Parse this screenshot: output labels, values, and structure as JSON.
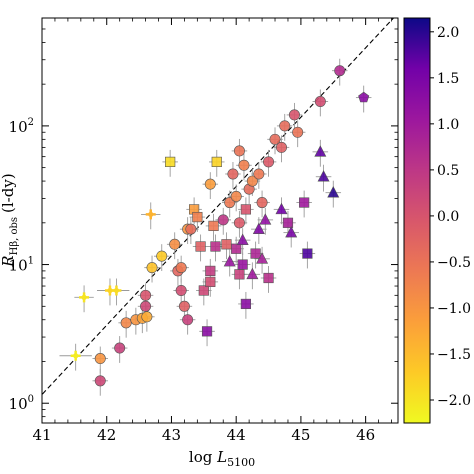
{
  "chart_data": {
    "type": "scatter",
    "title": "",
    "xlabel_prefix": "log ",
    "xlabel_var": "L",
    "xlabel_sub": "5100",
    "ylabel_main": "R",
    "ylabel_sub": "Hβ, obs",
    "ylabel_unit": "(l-dy)",
    "xlim": [
      41.0,
      46.5
    ],
    "ylim": [
      0.72,
      600
    ],
    "yscale": "log",
    "xticks": [
      41,
      42,
      43,
      44,
      45,
      46
    ],
    "yticks": [
      {
        "value": 1,
        "base": "10",
        "exp": "0"
      },
      {
        "value": 10,
        "base": "10",
        "exp": "1"
      },
      {
        "value": 100,
        "base": "10",
        "exp": "2"
      }
    ],
    "reference_line": {
      "style": "dashed",
      "color": "#000000",
      "x": [
        40.5,
        46.5
      ],
      "y": [
        0.65,
        650
      ]
    },
    "colorbar": {
      "range": [
        -2.25,
        2.15
      ],
      "ticks": [
        "2.0",
        "1.5",
        "1.0",
        "0.5",
        "0.0",
        "−0.5",
        "−1.0",
        "−1.5",
        "−2.0"
      ],
      "tick_values": [
        2.0,
        1.5,
        1.0,
        0.5,
        0.0,
        -0.5,
        -1.0,
        -1.5,
        -2.0
      ],
      "colormap": "plasma"
    },
    "points": [
      {
        "x": 41.52,
        "y": 2.2,
        "m": "plus",
        "c": -2.1,
        "xe": 0.25
      },
      {
        "x": 41.65,
        "y": 5.8,
        "m": "plus",
        "c": -2.0,
        "xe": 0.15
      },
      {
        "x": 41.9,
        "y": 1.45,
        "m": "circle",
        "c": 0.2
      },
      {
        "x": 41.9,
        "y": 2.1,
        "m": "circle",
        "c": -1.0
      },
      {
        "x": 42.05,
        "y": 6.5,
        "m": "plus",
        "c": -1.8,
        "xe": 0.2
      },
      {
        "x": 42.15,
        "y": 6.5,
        "m": "plus",
        "c": -1.9,
        "xe": 0.2
      },
      {
        "x": 42.2,
        "y": 2.5,
        "m": "circle",
        "c": 0.3
      },
      {
        "x": 42.3,
        "y": 3.8,
        "m": "circle",
        "c": -0.8
      },
      {
        "x": 42.45,
        "y": 4.0,
        "m": "circle",
        "c": -1.0
      },
      {
        "x": 42.55,
        "y": 4.1,
        "m": "circle",
        "c": -1.2
      },
      {
        "x": 42.6,
        "y": 6.0,
        "m": "circle",
        "c": 0.0
      },
      {
        "x": 42.6,
        "y": 5.0,
        "m": "circle",
        "c": 0.2
      },
      {
        "x": 42.62,
        "y": 4.2,
        "m": "circle",
        "c": -1.3
      },
      {
        "x": 42.68,
        "y": 23.0,
        "m": "plus",
        "c": -1.4,
        "xe": 0.15
      },
      {
        "x": 42.7,
        "y": 9.5,
        "m": "circle",
        "c": -1.6
      },
      {
        "x": 42.85,
        "y": 11.5,
        "m": "circle",
        "c": -1.7
      },
      {
        "x": 43.05,
        "y": 14.0,
        "m": "circle",
        "c": -0.9
      },
      {
        "x": 43.1,
        "y": 9.0,
        "m": "circle",
        "c": -0.3
      },
      {
        "x": 43.15,
        "y": 9.5,
        "m": "circle",
        "c": -0.6
      },
      {
        "x": 43.15,
        "y": 6.5,
        "m": "circle",
        "c": 0.1
      },
      {
        "x": 43.2,
        "y": 5.0,
        "m": "circle",
        "c": -0.2
      },
      {
        "x": 43.25,
        "y": 4.0,
        "m": "circle",
        "c": 0.3
      },
      {
        "x": 43.25,
        "y": 18.0,
        "m": "circle",
        "c": -1.0
      },
      {
        "x": 43.3,
        "y": 18.0,
        "m": "circle",
        "c": -0.4
      },
      {
        "x": 43.35,
        "y": 25.0,
        "m": "square",
        "c": -1.1
      },
      {
        "x": 43.4,
        "y": 22.0,
        "m": "square",
        "c": -0.7
      },
      {
        "x": 43.45,
        "y": 13.5,
        "m": "square",
        "c": -0.2
      },
      {
        "x": 43.5,
        "y": 6.5,
        "m": "square",
        "c": 0.2
      },
      {
        "x": 43.55,
        "y": 3.3,
        "m": "square",
        "c": 1.3
      },
      {
        "x": 43.6,
        "y": 7.5,
        "m": "square",
        "c": 0.1
      },
      {
        "x": 43.6,
        "y": 9.0,
        "m": "square",
        "c": 0.4
      },
      {
        "x": 43.6,
        "y": 38.0,
        "m": "circle",
        "c": -1.1
      },
      {
        "x": 43.65,
        "y": 19.0,
        "m": "square",
        "c": -0.6
      },
      {
        "x": 43.68,
        "y": 13.5,
        "m": "square",
        "c": 0.6
      },
      {
        "x": 43.7,
        "y": 55.0,
        "m": "square",
        "c": -1.8
      },
      {
        "x": 43.8,
        "y": 21.0,
        "m": "circle",
        "c": 0.5
      },
      {
        "x": 43.85,
        "y": 14.0,
        "m": "square",
        "c": -0.2
      },
      {
        "x": 43.9,
        "y": 28.0,
        "m": "circle",
        "c": -0.6
      },
      {
        "x": 43.9,
        "y": 10.5,
        "m": "triangle",
        "c": 1.1
      },
      {
        "x": 43.95,
        "y": 45.0,
        "m": "circle",
        "c": -0.3
      },
      {
        "x": 44.0,
        "y": 13.0,
        "m": "square",
        "c": 0.7
      },
      {
        "x": 44.0,
        "y": 31.0,
        "m": "circle",
        "c": -0.8
      },
      {
        "x": 44.05,
        "y": 8.5,
        "m": "square",
        "c": 0.3
      },
      {
        "x": 44.05,
        "y": 20.0,
        "m": "circle",
        "c": -0.1
      },
      {
        "x": 44.05,
        "y": 66.0,
        "m": "circle",
        "c": -0.5
      },
      {
        "x": 44.1,
        "y": 10.0,
        "m": "square",
        "c": 1.1
      },
      {
        "x": 44.1,
        "y": 15.0,
        "m": "triangle",
        "c": 1.3
      },
      {
        "x": 44.12,
        "y": 52.0,
        "m": "circle",
        "c": -0.7
      },
      {
        "x": 44.15,
        "y": 5.2,
        "m": "square",
        "c": 1.3
      },
      {
        "x": 44.15,
        "y": 25.0,
        "m": "square",
        "c": 0.0
      },
      {
        "x": 44.2,
        "y": 35.0,
        "m": "circle",
        "c": -0.4
      },
      {
        "x": 44.25,
        "y": 40.0,
        "m": "circle",
        "c": -0.8
      },
      {
        "x": 44.25,
        "y": 8.5,
        "m": "triangle",
        "c": 1.0
      },
      {
        "x": 44.3,
        "y": 12.0,
        "m": "square",
        "c": 0.8
      },
      {
        "x": 44.35,
        "y": 18.0,
        "m": "triangle",
        "c": 1.4
      },
      {
        "x": 44.35,
        "y": 45.0,
        "m": "circle",
        "c": -0.6
      },
      {
        "x": 44.4,
        "y": 11.0,
        "m": "triangle",
        "c": 0.9
      },
      {
        "x": 44.4,
        "y": 28.0,
        "m": "circle",
        "c": -0.3
      },
      {
        "x": 44.45,
        "y": 21.0,
        "m": "triangle",
        "c": 1.2
      },
      {
        "x": 44.5,
        "y": 8.0,
        "m": "square",
        "c": 0.6
      },
      {
        "x": 44.5,
        "y": 55.0,
        "m": "circle",
        "c": -0.1
      },
      {
        "x": 44.6,
        "y": 80.0,
        "m": "circle",
        "c": -0.4
      },
      {
        "x": 44.7,
        "y": 70.0,
        "m": "circle",
        "c": -0.2
      },
      {
        "x": 44.7,
        "y": 25.0,
        "m": "triangle",
        "c": 1.6
      },
      {
        "x": 44.75,
        "y": 100.0,
        "m": "circle",
        "c": -0.4
      },
      {
        "x": 44.8,
        "y": 20.0,
        "m": "square",
        "c": 0.9
      },
      {
        "x": 44.85,
        "y": 17.0,
        "m": "triangle",
        "c": 1.5
      },
      {
        "x": 44.9,
        "y": 120.0,
        "m": "circle",
        "c": 0.0
      },
      {
        "x": 44.95,
        "y": 90.0,
        "m": "circle",
        "c": -0.5
      },
      {
        "x": 45.05,
        "y": 28.0,
        "m": "square",
        "c": 1.0
      },
      {
        "x": 45.1,
        "y": 12.0,
        "m": "square",
        "c": 1.8
      },
      {
        "x": 45.3,
        "y": 150.0,
        "m": "circle",
        "c": 0.1
      },
      {
        "x": 45.3,
        "y": 65.0,
        "m": "triangle",
        "c": 1.7
      },
      {
        "x": 45.35,
        "y": 43.0,
        "m": "triangle",
        "c": 1.8
      },
      {
        "x": 45.5,
        "y": 33.0,
        "m": "triangle",
        "c": 2.0
      },
      {
        "x": 45.6,
        "y": 250.0,
        "m": "circle",
        "c": 0.7
      },
      {
        "x": 45.97,
        "y": 160.0,
        "m": "pentagon",
        "c": 1.3
      },
      {
        "x": 42.98,
        "y": 55.0,
        "m": "square",
        "c": -1.9
      }
    ]
  }
}
